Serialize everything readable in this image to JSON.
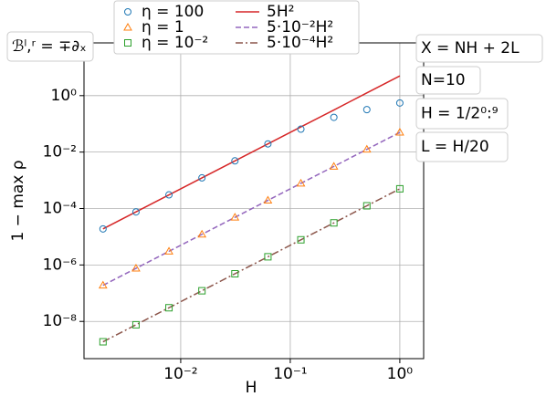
{
  "chart_data": {
    "type": "scatter-line",
    "x_label": "H",
    "y_label": "1 − max ρ",
    "xscale": "log",
    "yscale": "log",
    "grid": true,
    "xlim": [
      0.00131,
      1.65
    ],
    "ylim": [
      4.8e-10,
      74
    ],
    "xticks": [
      {
        "value": 0.01,
        "label": "10⁻²"
      },
      {
        "value": 0.1,
        "label": "10⁻¹"
      },
      {
        "value": 1,
        "label": "10⁰"
      }
    ],
    "yticks": [
      {
        "value": 1e-08,
        "label": "10⁻⁸"
      },
      {
        "value": 1e-06,
        "label": "10⁻⁶"
      },
      {
        "value": 0.0001,
        "label": "10⁻⁴"
      },
      {
        "value": 0.01,
        "label": "10⁻²"
      },
      {
        "value": 1,
        "label": "10⁰"
      }
    ],
    "x": [
      0.001953125,
      0.00390625,
      0.0078125,
      0.015625,
      0.03125,
      0.0625,
      0.125,
      0.25,
      0.5,
      1
    ],
    "series": [
      {
        "name": "η = 100",
        "color": "#1f77b4",
        "marker": "circle",
        "values": [
          1.9e-05,
          7.6e-05,
          0.000305,
          0.00122,
          0.00488,
          0.0195,
          0.065,
          0.17,
          0.32,
          0.55
        ]
      },
      {
        "name": "η = 1",
        "color": "#ff7f0e",
        "marker": "triangle",
        "values": [
          1.9e-07,
          7.6e-07,
          3.05e-06,
          1.22e-05,
          4.88e-05,
          0.000195,
          0.00078,
          0.0031,
          0.0125,
          0.05
        ]
      },
      {
        "name": "η = 10⁻²",
        "color": "#2ca02c",
        "marker": "square",
        "values": [
          1.9e-09,
          7.6e-09,
          3.05e-08,
          1.22e-07,
          4.88e-07,
          1.95e-06,
          7.8e-06,
          3.1e-05,
          0.000125,
          0.0005
        ]
      },
      {
        "name": "5H²",
        "color": "#d62728",
        "linestyle": "solid",
        "values": [
          1.9e-05,
          7.6e-05,
          0.000305,
          0.00122,
          0.00488,
          0.0195,
          0.078,
          0.31,
          1.25,
          5
        ]
      },
      {
        "name": "5·10⁻²H²",
        "color": "#9467bd",
        "linestyle": "dashed",
        "values": [
          1.9e-07,
          7.6e-07,
          3.05e-06,
          1.22e-05,
          4.88e-05,
          0.000195,
          0.00078,
          0.0031,
          0.0125,
          0.05
        ]
      },
      {
        "name": "5·10⁻⁴H²",
        "color": "#8c564b",
        "linestyle": "dashdot",
        "values": [
          1.9e-09,
          7.6e-09,
          3.05e-08,
          1.22e-07,
          4.88e-07,
          1.95e-06,
          7.8e-06,
          3.1e-05,
          0.000125,
          0.0005
        ]
      }
    ],
    "annotations": [
      "ℬˡ,ʳ = ∓∂ₓ",
      "X = NH + 2L",
      "N=10",
      "H = 1/2⁰:⁹",
      "L = H/20"
    ]
  }
}
